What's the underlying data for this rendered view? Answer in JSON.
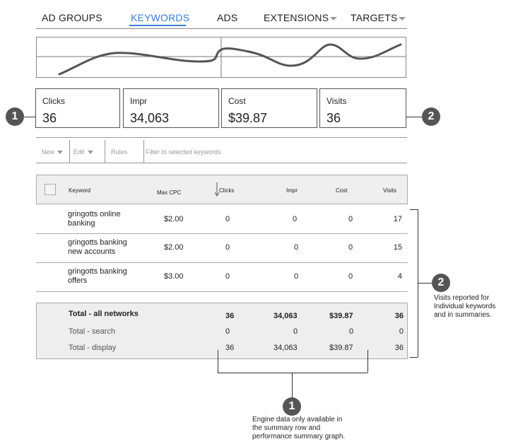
{
  "tabs": [
    {
      "label": "AD GROUPS",
      "active": false
    },
    {
      "label": "KEYWORDS",
      "active": true
    },
    {
      "label": "ADS",
      "active": false
    },
    {
      "label": "EXTENSIONS",
      "active": false,
      "has_dropdown": true
    },
    {
      "label": "TARGETS",
      "active": false,
      "has_dropdown": true
    }
  ],
  "metrics": [
    {
      "label": "Clicks",
      "value": "36"
    },
    {
      "label": "Impr",
      "value": "34,063"
    },
    {
      "label": "Cost",
      "value": "$39.87"
    },
    {
      "label": "Visits",
      "value": "36"
    }
  ],
  "toolbar": {
    "new_label": "New",
    "edit_label": "Edit",
    "rules_label": "Rules",
    "filter_placeholder": "Filter to selected keywords"
  },
  "table": {
    "headers": {
      "keyword": "Keyword",
      "max_cpc": "Max CPC",
      "clicks": "Clicks",
      "impr": "Impr",
      "cost": "Cost",
      "visits": "Visits"
    },
    "sort_column": "Clicks",
    "rows": [
      {
        "keyword_line1": "gringotts online",
        "keyword_line2": "banking",
        "max_cpc": "$2.00",
        "clicks": "0",
        "impr": "0",
        "cost": "0",
        "visits": "17"
      },
      {
        "keyword_line1": "gringotts banking",
        "keyword_line2": "new accounts",
        "max_cpc": "$2.00",
        "clicks": "0",
        "impr": "0",
        "cost": "0",
        "visits": "15"
      },
      {
        "keyword_line1": "gringotts banking",
        "keyword_line2": "offers",
        "max_cpc": "$3.00",
        "clicks": "0",
        "impr": "0",
        "cost": "0",
        "visits": "4"
      }
    ],
    "summary": [
      {
        "label": "Total - all networks",
        "clicks": "36",
        "impr": "34,063",
        "cost": "$39.87",
        "visits": "36",
        "bold": true
      },
      {
        "label": "Total - search",
        "clicks": "0",
        "impr": "0",
        "cost": "0",
        "visits": "0",
        "bold": false
      },
      {
        "label": "Total - display",
        "clicks": "36",
        "impr": "34,063",
        "cost": "$39.87",
        "visits": "36",
        "bold": false
      }
    ]
  },
  "callouts": {
    "one": {
      "number": "1",
      "note": [
        "Engine data only available in",
        "the summary row and",
        "performance summary graph."
      ]
    },
    "two": {
      "number": "2",
      "note": [
        "Visits reported for",
        "Individual keywords",
        "and in summaries."
      ]
    }
  },
  "colors": {
    "accent": "#3a7bd5",
    "badge": "#555555",
    "summary_bg": "#eeeeee"
  }
}
